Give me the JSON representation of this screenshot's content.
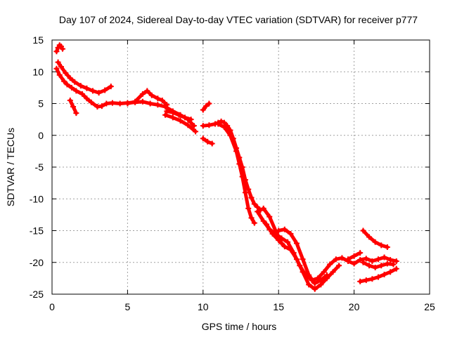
{
  "chart_data": {
    "type": "scatter",
    "title": "Day 107 of 2024, Sidereal Day-to-day VTEC variation (SDTVAR) for receiver p777",
    "xlabel": "GPS time / hours",
    "ylabel": "SDTVAR / TECUs",
    "xlim": [
      0,
      25
    ],
    "ylim": [
      -25,
      15
    ],
    "xticks": [
      0,
      5,
      10,
      15,
      20,
      25
    ],
    "yticks": [
      -25,
      -20,
      -15,
      -10,
      -5,
      0,
      5,
      10,
      15
    ],
    "xtick_labels": [
      "0",
      "5",
      "10",
      "15",
      "20",
      "25"
    ],
    "ytick_labels": [
      "-25",
      "-20",
      "-15",
      "-10",
      "-5",
      "0",
      "5",
      "10",
      "15"
    ],
    "grid": true,
    "marker_color": "#ff0000",
    "series": [
      {
        "x": [
          0.3,
          0.4,
          0.5,
          0.6,
          0.7
        ],
        "y": [
          13.2,
          13.8,
          14.2,
          14.0,
          13.6
        ]
      },
      {
        "x": [
          0.3,
          0.5,
          0.8,
          1.0,
          1.3,
          1.6,
          2.0,
          2.3,
          2.6,
          3.0,
          3.3,
          3.6,
          4.0,
          4.5,
          5.0,
          5.5,
          6.0,
          6.5,
          7.0,
          7.5,
          8.0,
          8.5,
          9.0,
          9.4
        ],
        "y": [
          10.5,
          9.5,
          8.5,
          8.0,
          7.5,
          7.0,
          6.5,
          5.8,
          5.2,
          4.5,
          4.6,
          5.0,
          5.1,
          5.0,
          5.1,
          5.2,
          5.3,
          5.0,
          4.8,
          4.5,
          3.8,
          3.2,
          2.5,
          1.5
        ]
      },
      {
        "x": [
          0.4,
          0.6,
          0.9,
          1.2,
          1.5,
          1.9,
          2.3,
          2.7,
          3.1,
          3.5,
          3.9
        ],
        "y": [
          11.5,
          10.8,
          9.8,
          9.0,
          8.4,
          7.8,
          7.4,
          7.0,
          6.7,
          7.1,
          7.7
        ]
      },
      {
        "x": [
          1.2,
          1.4,
          1.6
        ],
        "y": [
          5.5,
          4.5,
          3.5
        ]
      },
      {
        "x": [
          5.0,
          5.5,
          6.0,
          6.3,
          6.6,
          7.0,
          7.3,
          7.6
        ],
        "y": [
          5.0,
          5.3,
          6.5,
          7.0,
          6.3,
          5.8,
          5.5,
          4.8
        ]
      },
      {
        "x": [
          7.6,
          8.0,
          8.4,
          8.8,
          9.2
        ],
        "y": [
          3.8,
          3.6,
          3.2,
          2.8,
          2.5
        ]
      },
      {
        "x": [
          7.5,
          8.0,
          8.5,
          9.0,
          9.5
        ],
        "y": [
          3.2,
          2.8,
          2.3,
          1.6,
          0.6
        ]
      },
      {
        "x": [
          10.0,
          10.2,
          10.4
        ],
        "y": [
          4.0,
          4.6,
          5.0
        ]
      },
      {
        "x": [
          10.0,
          10.3,
          10.6
        ],
        "y": [
          -0.5,
          -1.0,
          -1.3
        ]
      },
      {
        "x": [
          10.0,
          10.4,
          10.8,
          11.0,
          11.2,
          11.4,
          11.6,
          11.8,
          12.0,
          12.2,
          12.4,
          12.6,
          12.8,
          13.0,
          13.2,
          13.4,
          13.6,
          13.8
        ],
        "y": [
          1.5,
          1.6,
          1.8,
          2.0,
          2.2,
          2.0,
          1.5,
          0.8,
          -0.5,
          -2.0,
          -3.5,
          -5.0,
          -7.0,
          -8.5,
          -9.8,
          -10.8,
          -11.3,
          -11.8
        ]
      },
      {
        "x": [
          11.0,
          11.4,
          11.8,
          12.2,
          12.4,
          12.6,
          12.8,
          13.0,
          13.2,
          13.4
        ],
        "y": [
          1.8,
          1.3,
          0.0,
          -2.5,
          -4.5,
          -6.5,
          -9.0,
          -11.5,
          -13.0,
          -13.8
        ]
      },
      {
        "x": [
          13.6,
          14.0,
          14.4,
          14.8,
          15.2,
          15.6,
          16.0,
          16.4,
          16.8,
          17.2,
          17.6,
          18.0,
          18.4,
          18.8,
          19.2,
          19.6,
          20.0,
          20.4,
          20.8,
          21.2,
          21.6,
          22.0,
          22.4,
          22.8
        ],
        "y": [
          -12.0,
          -13.5,
          -14.8,
          -15.5,
          -16.2,
          -16.8,
          -18.5,
          -20.5,
          -22.0,
          -22.8,
          -22.5,
          -21.5,
          -20.3,
          -19.5,
          -19.3,
          -19.8,
          -20.2,
          -19.6,
          -19.4,
          -19.8,
          -19.5,
          -19.2,
          -19.6,
          -19.8
        ]
      },
      {
        "x": [
          14.2,
          14.6,
          15.0,
          15.4,
          15.8,
          16.2,
          16.6,
          17.0,
          17.4,
          17.8,
          18.2,
          18.6,
          19.0
        ],
        "y": [
          -14.0,
          -15.5,
          -16.5,
          -17.5,
          -18.0,
          -19.5,
          -21.5,
          -23.5,
          -24.2,
          -23.5,
          -22.5,
          -21.5,
          -20.5
        ]
      },
      {
        "x": [
          15.0,
          15.4,
          15.8,
          16.2,
          16.6,
          17.0,
          17.4,
          17.8,
          18.2
        ],
        "y": [
          -15.0,
          -14.8,
          -15.5,
          -17.0,
          -19.5,
          -22.0,
          -23.3,
          -22.8,
          -22.0
        ]
      },
      {
        "x": [
          14.0,
          14.4,
          14.8,
          15.2
        ],
        "y": [
          -11.5,
          -12.8,
          -15.0,
          -17.0
        ]
      },
      {
        "x": [
          19.6,
          20.0,
          20.4
        ],
        "y": [
          -19.5,
          -19.0,
          -18.5
        ]
      },
      {
        "x": [
          20.6,
          21.0,
          21.4,
          21.8,
          22.2
        ],
        "y": [
          -15.0,
          -16.0,
          -16.8,
          -17.3,
          -17.6
        ]
      },
      {
        "x": [
          20.6,
          21.0,
          21.4,
          21.8,
          22.2,
          22.6
        ],
        "y": [
          -20.0,
          -20.5,
          -20.8,
          -20.5,
          -20.2,
          -20.3
        ]
      },
      {
        "x": [
          20.4,
          20.8,
          21.2,
          21.6,
          22.0,
          22.4,
          22.8
        ],
        "y": [
          -23.0,
          -22.8,
          -22.6,
          -22.3,
          -21.9,
          -21.5,
          -21.0
        ]
      }
    ]
  }
}
